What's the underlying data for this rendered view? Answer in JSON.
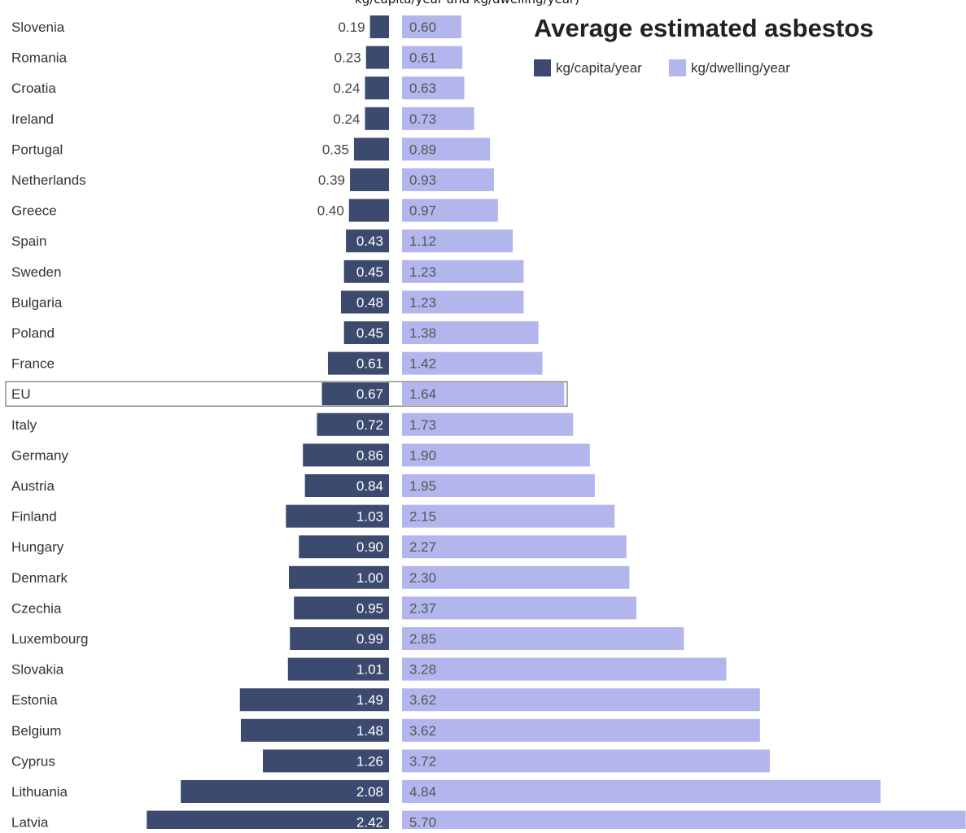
{
  "header": {
    "subtitle": "kg/capita/year and kg/dwelling/year)",
    "title": "Average estimated asbestos"
  },
  "legend": {
    "items": [
      {
        "label": "kg/capita/year",
        "color": "#3b4a6e"
      },
      {
        "label": "kg/dwelling/year",
        "color": "#b3b6ec"
      }
    ],
    "placement": "top-right"
  },
  "chart_data": {
    "type": "bar",
    "orientation": "horizontal",
    "layout": "butterfly",
    "highlighted_category": "EU",
    "categories": [
      "Slovenia",
      "Romania",
      "Croatia",
      "Ireland",
      "Portugal",
      "Netherlands",
      "Greece",
      "Spain",
      "Sweden",
      "Bulgaria",
      "Poland",
      "France",
      "EU",
      "Italy",
      "Germany",
      "Austria",
      "Finland",
      "Hungary",
      "Denmark",
      "Czechia",
      "Luxembourg",
      "Slovakia",
      "Estonia",
      "Belgium",
      "Cyprus",
      "Lithuania",
      "Latvia"
    ],
    "series": [
      {
        "name": "kg/capita/year",
        "color": "#3b4a6e",
        "direction": "left",
        "values": [
          0.19,
          0.23,
          0.24,
          0.24,
          0.35,
          0.39,
          0.4,
          0.43,
          0.45,
          0.48,
          0.45,
          0.61,
          0.67,
          0.72,
          0.86,
          0.84,
          1.03,
          0.9,
          1.0,
          0.95,
          0.99,
          1.01,
          1.49,
          1.48,
          1.26,
          2.08,
          2.42
        ],
        "labels": [
          "0.19",
          "0.23",
          "0.24",
          "0.24",
          "0.35",
          "0.39",
          "0.40",
          "0.43",
          "0.45",
          "0.48",
          "0.45",
          "0.61",
          "0.67",
          "0.72",
          "0.86",
          "0.84",
          "1.03",
          "0.90",
          "1.00",
          "0.95",
          "0.99",
          "1.01",
          "1.49",
          "1.48",
          "1.26",
          "2.08",
          "2.42"
        ]
      },
      {
        "name": "kg/dwelling/year",
        "color": "#b3b6ec",
        "direction": "right",
        "values": [
          0.6,
          0.61,
          0.63,
          0.73,
          0.89,
          0.93,
          0.97,
          1.12,
          1.23,
          1.23,
          1.38,
          1.42,
          1.64,
          1.73,
          1.9,
          1.95,
          2.15,
          2.27,
          2.3,
          2.37,
          2.85,
          3.28,
          3.62,
          3.62,
          3.72,
          4.84,
          5.7
        ],
        "labels": [
          "0.60",
          "0.61",
          "0.63",
          "0.73",
          "0.89",
          "0.93",
          "0.97",
          "1.12",
          "1.23",
          "1.23",
          "1.38",
          "1.42",
          "1.64",
          "1.73",
          "1.90",
          "1.95",
          "2.15",
          "2.27",
          "2.30",
          "2.37",
          "2.85",
          "3.28",
          "3.62",
          "3.62",
          "3.72",
          "4.84",
          "5.70"
        ]
      }
    ]
  }
}
